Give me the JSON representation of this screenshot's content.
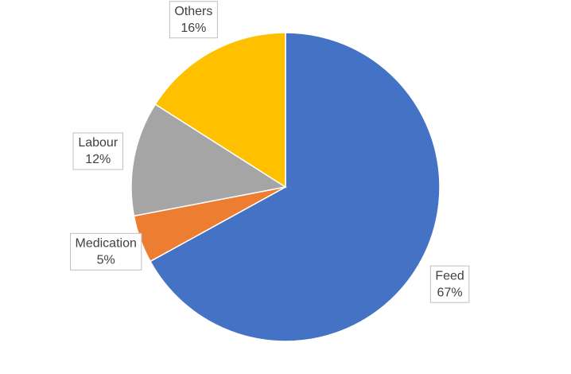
{
  "chart_data": {
    "type": "pie",
    "categories": [
      "Feed",
      "Medication",
      "Labour",
      "Others"
    ],
    "values": [
      67,
      5,
      12,
      16
    ],
    "value_labels": [
      "67%",
      "5%",
      "12%",
      "16%"
    ],
    "colors": [
      "#4472c4",
      "#ed7d31",
      "#a5a5a5",
      "#ffc000"
    ]
  }
}
